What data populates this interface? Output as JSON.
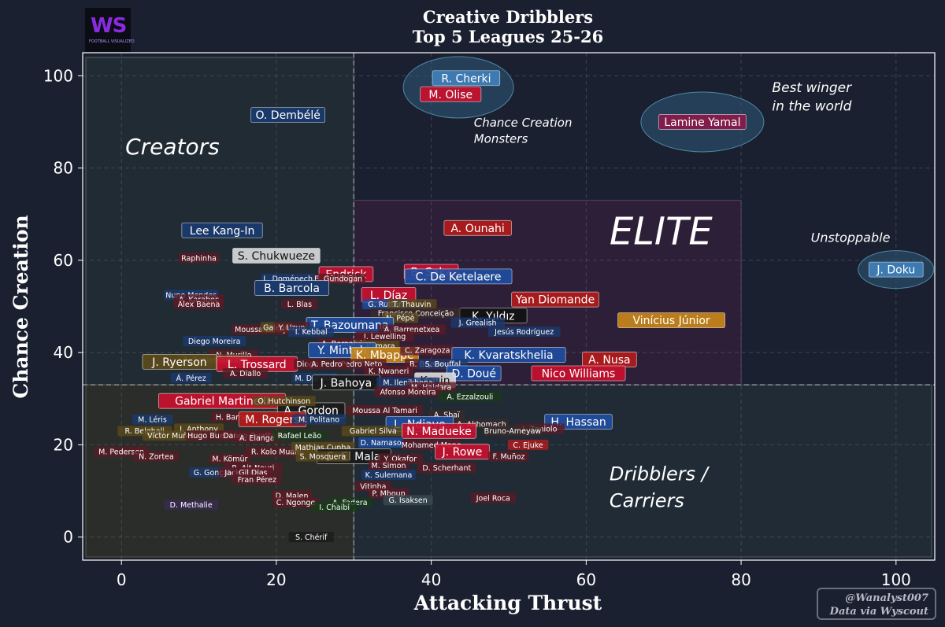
{
  "chart_data": {
    "type": "scatter",
    "title": "Creative Dribblers",
    "subtitle": "Top 5 Leagues 25-26",
    "xlabel": "Attacking Thrust",
    "ylabel": "Chance Creation",
    "xlim": [
      -5,
      105
    ],
    "ylim": [
      -5,
      105
    ],
    "xticks": [
      0,
      20,
      40,
      60,
      80,
      100
    ],
    "yticks": [
      0,
      20,
      40,
      60,
      80,
      100
    ],
    "grid": true,
    "divider_x": 30,
    "divider_y": 33,
    "zones": [
      {
        "label": "Creators"
      },
      {
        "label": "ELITE"
      },
      {
        "label": "Dribblers / Carriers"
      }
    ],
    "annotations": [
      {
        "text": "Chance Creation Monsters"
      },
      {
        "text": "Best winger in the world"
      },
      {
        "text": "Unstoppable"
      }
    ],
    "points": [
      {
        "name": "R. Cherki",
        "x": 44.5,
        "y": 99.5,
        "color": "#3f7fb8",
        "size": "l"
      },
      {
        "name": "M. Olise",
        "x": 42.5,
        "y": 96,
        "color": "#c8102e",
        "size": "l"
      },
      {
        "name": "Lamine Yamal",
        "x": 75,
        "y": 90,
        "color": "#8b1a4a",
        "size": "l"
      },
      {
        "name": "O. Dembélé",
        "x": 21.5,
        "y": 91.5,
        "color": "#1a3a6e",
        "size": "l"
      },
      {
        "name": "Lee Kang-In",
        "x": 13,
        "y": 66.5,
        "color": "#1a3a6e",
        "size": "l"
      },
      {
        "name": "A. Ounahi",
        "x": 46,
        "y": 67,
        "color": "#b31b1b",
        "size": "l"
      },
      {
        "name": "J. Doku",
        "x": 100,
        "y": 58,
        "color": "#3f7fb8",
        "size": "l"
      },
      {
        "name": "S. Chukwueze",
        "x": 20,
        "y": 61,
        "color": "#d8d8d8",
        "size": "l",
        "dark": true
      },
      {
        "name": "Raphinha",
        "x": 10,
        "y": 60.5,
        "color": "#5b1a24",
        "size": "s"
      },
      {
        "name": "Endrick",
        "x": 29,
        "y": 57,
        "color": "#c8102e",
        "size": "l"
      },
      {
        "name": "E. Gündoğan",
        "x": 28,
        "y": 56,
        "color": "#5b1a24",
        "size": "s"
      },
      {
        "name": "B. Saka",
        "x": 40,
        "y": 57.5,
        "color": "#c8102e",
        "size": "l"
      },
      {
        "name": "C. De Ketelaere",
        "x": 43.5,
        "y": 56.5,
        "color": "#1e4da0",
        "size": "l"
      },
      {
        "name": "L. Doménech",
        "x": 21.5,
        "y": 56,
        "color": "#1a3a6e",
        "size": "s"
      },
      {
        "name": "B. Barcola",
        "x": 22,
        "y": 54,
        "color": "#1a3a6e",
        "size": "l"
      },
      {
        "name": "L. Díaz",
        "x": 34.5,
        "y": 52.5,
        "color": "#c8102e",
        "size": "l"
      },
      {
        "name": "Yan Diomande",
        "x": 56,
        "y": 51.5,
        "color": "#b31b1b",
        "size": "l"
      },
      {
        "name": "Nuno Mendes",
        "x": 9,
        "y": 52.5,
        "color": "#1a3a6e",
        "size": "s"
      },
      {
        "name": "A. Karabec",
        "x": 10,
        "y": 51.5,
        "color": "#5b1a24",
        "size": "s"
      },
      {
        "name": "Alex Baena",
        "x": 10,
        "y": 50.5,
        "color": "#5b1a24",
        "size": "s"
      },
      {
        "name": "L. Blas",
        "x": 23,
        "y": 50.5,
        "color": "#5b1a24",
        "size": "s"
      },
      {
        "name": "G. Rutter",
        "x": 34,
        "y": 50.5,
        "color": "#1e4da0",
        "size": "s"
      },
      {
        "name": "T. Thauvin",
        "x": 37.5,
        "y": 50.5,
        "color": "#5b4a1a",
        "size": "s"
      },
      {
        "name": "K. Yıldız",
        "x": 48,
        "y": 48,
        "color": "#111111",
        "size": "l"
      },
      {
        "name": "Vinícius Júnior",
        "x": 71,
        "y": 47,
        "color": "#c8861a",
        "size": "l"
      },
      {
        "name": "Francisco Conceição",
        "x": 38,
        "y": 48.5,
        "color": "#3a2a2a",
        "size": "s"
      },
      {
        "name": "N. Pépé",
        "x": 36,
        "y": 47.5,
        "color": "#5b4a1a",
        "size": "s"
      },
      {
        "name": "J. Grealish",
        "x": 46,
        "y": 46.5,
        "color": "#1a3a6e",
        "size": "s"
      },
      {
        "name": "T. Bazoumana",
        "x": 29.5,
        "y": 46,
        "color": "#1e4da0",
        "size": "l"
      },
      {
        "name": "Jesús Rodríguez",
        "x": 52,
        "y": 44.5,
        "color": "#1a3a6e",
        "size": "s"
      },
      {
        "name": "A. Barrenetxea",
        "x": 37.5,
        "y": 45,
        "color": "#5b1a24",
        "size": "s"
      },
      {
        "name": "Moussa Diaby",
        "x": 18,
        "y": 45,
        "color": "#5b1a24",
        "size": "s"
      },
      {
        "name": "Galeno",
        "x": 20,
        "y": 45.5,
        "color": "#5b4a1a",
        "size": "s"
      },
      {
        "name": "Y. Uzun",
        "x": 22,
        "y": 45.5,
        "color": "#5b1a24",
        "size": "s"
      },
      {
        "name": "I. Kebbal",
        "x": 24.5,
        "y": 44.5,
        "color": "#1a3a6e",
        "size": "s"
      },
      {
        "name": "J. Lewelling",
        "x": 34,
        "y": 43.5,
        "color": "#5b1a24",
        "size": "s"
      },
      {
        "name": "Diego Moreira",
        "x": 12,
        "y": 42.5,
        "color": "#1a3a6e",
        "size": "s"
      },
      {
        "name": "A. Bernabé",
        "x": 28.5,
        "y": 42,
        "color": "#5b1a24",
        "size": "s"
      },
      {
        "name": "J. Kamara",
        "x": 33,
        "y": 41.5,
        "color": "#5b4a1a",
        "size": "s"
      },
      {
        "name": "Y. Minteh",
        "x": 28.5,
        "y": 40.5,
        "color": "#1e4da0",
        "size": "l"
      },
      {
        "name": "K. Mbappé",
        "x": 34,
        "y": 39.5,
        "color": "#c8861a",
        "size": "l"
      },
      {
        "name": "C. Zaragoza",
        "x": 39.5,
        "y": 40.5,
        "color": "#5b1a24",
        "size": "s"
      },
      {
        "name": "K. Kvaratskhelia",
        "x": 50,
        "y": 39.5,
        "color": "#1e4da0",
        "size": "l"
      },
      {
        "name": "A. Nusa",
        "x": 63,
        "y": 38.5,
        "color": "#b31b1b",
        "size": "l"
      },
      {
        "name": "N. Murillo",
        "x": 14.5,
        "y": 39.5,
        "color": "#5b1a24",
        "size": "s"
      },
      {
        "name": "A. Saelemaekers",
        "x": 12,
        "y": 38.5,
        "color": "#5b4a1a",
        "size": "s"
      },
      {
        "name": "J. Ryerson",
        "x": 7.5,
        "y": 38,
        "color": "#5b4a1a",
        "size": "l"
      },
      {
        "name": "Pedro Neto",
        "x": 31,
        "y": 37.5,
        "color": "#5b1a24",
        "size": "s"
      },
      {
        "name": "L. Trossard",
        "x": 17.5,
        "y": 37.5,
        "color": "#c8102e",
        "size": "l"
      },
      {
        "name": "Diogo",
        "x": 24,
        "y": 37.5,
        "color": "#5b1a24",
        "size": "s"
      },
      {
        "name": "B. Bryson",
        "x": 39.5,
        "y": 37.5,
        "color": "#5b1a24",
        "size": "s"
      },
      {
        "name": "S. Bouffal",
        "x": 41.5,
        "y": 37.5,
        "color": "#1a3a6e",
        "size": "s"
      },
      {
        "name": "A. Pedro",
        "x": 26.5,
        "y": 37.5,
        "color": "#5b1a24",
        "size": "s"
      },
      {
        "name": "Nico Williams",
        "x": 59,
        "y": 35.5,
        "color": "#c8102e",
        "size": "l"
      },
      {
        "name": "D. Doué",
        "x": 45.5,
        "y": 35.5,
        "color": "#1e4da0",
        "size": "l"
      },
      {
        "name": "K. Nwaneri",
        "x": 34.5,
        "y": 36,
        "color": "#5b1a24",
        "size": "s"
      },
      {
        "name": "Á. Pérez",
        "x": 9,
        "y": 34.5,
        "color": "#1a3a6e",
        "size": "s"
      },
      {
        "name": "M. Dahoud",
        "x": 25,
        "y": 34.5,
        "color": "#1a3a6e",
        "size": "s"
      },
      {
        "name": "A. Diallo",
        "x": 16,
        "y": 35.5,
        "color": "#5b1a24",
        "size": "s"
      },
      {
        "name": "Kevin",
        "x": 40.5,
        "y": 34,
        "color": "#d8d8d8",
        "size": "l",
        "dark": true
      },
      {
        "name": "J. Bahoya",
        "x": 29,
        "y": 33.5,
        "color": "#1a1a1a",
        "size": "l"
      },
      {
        "name": "M. Ilenikhena",
        "x": 37,
        "y": 33.5,
        "color": "#1a3a6e",
        "size": "s"
      },
      {
        "name": "M. Haidara",
        "x": 40,
        "y": 32.5,
        "color": "#5b1a24",
        "size": "s"
      },
      {
        "name": "Afonso Moreira",
        "x": 37,
        "y": 31.5,
        "color": "#5b1a24",
        "size": "s"
      },
      {
        "name": "A. Ezzalzouli",
        "x": 45,
        "y": 30.5,
        "color": "#1a3a1a",
        "size": "s"
      },
      {
        "name": "Gabriel Martinelli",
        "x": 13,
        "y": 29.5,
        "color": "#c8102e",
        "size": "l"
      },
      {
        "name": "A. Gordon",
        "x": 24.5,
        "y": 27.5,
        "color": "#1a1a1a",
        "size": "l"
      },
      {
        "name": "O. Hutchinson",
        "x": 21,
        "y": 29.5,
        "color": "#5b4a1a",
        "size": "s"
      },
      {
        "name": "Moussa Al Tamari",
        "x": 34,
        "y": 27.5,
        "color": "#5b1a24",
        "size": "s"
      },
      {
        "name": "A. Sbaï",
        "x": 42,
        "y": 26.5,
        "color": "#3a2a2a",
        "size": "s"
      },
      {
        "name": "H. Hassan",
        "x": 59,
        "y": 25,
        "color": "#1e4da0",
        "size": "l"
      },
      {
        "name": "M. Léris",
        "x": 4,
        "y": 25.5,
        "color": "#1a3a6e",
        "size": "s"
      },
      {
        "name": "H. Barnes",
        "x": 14.5,
        "y": 26,
        "color": "#5b1a24",
        "size": "s"
      },
      {
        "name": "M. Rogers",
        "x": 19.5,
        "y": 25.5,
        "color": "#b31b1b",
        "size": "l"
      },
      {
        "name": "M. Politano",
        "x": 25.5,
        "y": 25.5,
        "color": "#1a3a6e",
        "size": "s"
      },
      {
        "name": "A. Akhomach",
        "x": 46.5,
        "y": 24.5,
        "color": "#3a2a2a",
        "size": "s"
      },
      {
        "name": "L. Ndiaye",
        "x": 38.5,
        "y": 24.5,
        "color": "#1e4da0",
        "size": "l"
      },
      {
        "name": "I. Zaniolo",
        "x": 54,
        "y": 23.5,
        "color": "#5b1a24",
        "size": "s"
      },
      {
        "name": "J. Anthony",
        "x": 10,
        "y": 23.5,
        "color": "#5b4a1a",
        "size": "s"
      },
      {
        "name": "R. Belghali",
        "x": 3,
        "y": 23,
        "color": "#5b4a1a",
        "size": "s"
      },
      {
        "name": "Gabriel Silva",
        "x": 32.5,
        "y": 23,
        "color": "#5b4a1a",
        "size": "s"
      },
      {
        "name": "N. Madueke",
        "x": 41,
        "y": 23,
        "color": "#c8102e",
        "size": "l"
      },
      {
        "name": "Bruno-Ameyaw",
        "x": 50.5,
        "y": 23,
        "color": "#3a2a2a",
        "size": "s"
      },
      {
        "name": "Víctor Muñoz",
        "x": 6.5,
        "y": 22,
        "color": "#5b4a1a",
        "size": "s"
      },
      {
        "name": "Hugo Bueno",
        "x": 11.5,
        "y": 22,
        "color": "#5b1a24",
        "size": "s"
      },
      {
        "name": "Dango Ouattara",
        "x": 17,
        "y": 22,
        "color": "#5b1a24",
        "size": "s"
      },
      {
        "name": "A. Elanga",
        "x": 17.5,
        "y": 21.5,
        "color": "#5b1a24",
        "size": "s"
      },
      {
        "name": "Rafael Leão",
        "x": 23,
        "y": 22,
        "color": "#1a3a1a",
        "size": "s"
      },
      {
        "name": "D. Namaso",
        "x": 33.5,
        "y": 20.5,
        "color": "#1e4da0",
        "size": "s"
      },
      {
        "name": "Mohamed Mane",
        "x": 40,
        "y": 20,
        "color": "#5b1a24",
        "size": "s"
      },
      {
        "name": "C. Ejuke",
        "x": 52.5,
        "y": 20,
        "color": "#b31b1b",
        "size": "s"
      },
      {
        "name": "M. Pedersen",
        "x": 0,
        "y": 18.5,
        "color": "#5b1a24",
        "size": "s"
      },
      {
        "name": "R. Kolo Muani",
        "x": 20,
        "y": 18.5,
        "color": "#5b1a24",
        "size": "s"
      },
      {
        "name": "N. Zortea",
        "x": 4.5,
        "y": 17.5,
        "color": "#5b1a24",
        "size": "s"
      },
      {
        "name": "Mathias Cunha",
        "x": 26,
        "y": 19.5,
        "color": "#5b4a1a",
        "size": "s"
      },
      {
        "name": "S. El Mala",
        "x": 30,
        "y": 17.5,
        "color": "#1a1a1a",
        "size": "l"
      },
      {
        "name": "Y. Okafor",
        "x": 36,
        "y": 17,
        "color": "#5b1a24",
        "size": "s"
      },
      {
        "name": "J. Rowe",
        "x": 44,
        "y": 18.5,
        "color": "#c8102e",
        "size": "l"
      },
      {
        "name": "F. Muñoz",
        "x": 50,
        "y": 17.5,
        "color": "#5b1a24",
        "size": "s"
      },
      {
        "name": "M. Kömür",
        "x": 14,
        "y": 17,
        "color": "#5b1a24",
        "size": "s"
      },
      {
        "name": "S. Mosquera",
        "x": 26,
        "y": 17.5,
        "color": "#5b4a1a",
        "size": "s"
      },
      {
        "name": "M. Simon",
        "x": 34.5,
        "y": 15.5,
        "color": "#5b1a24",
        "size": "s"
      },
      {
        "name": "D. Scherhant",
        "x": 42,
        "y": 15,
        "color": "#5b1a24",
        "size": "s"
      },
      {
        "name": "R. Ait-Nouri",
        "x": 17,
        "y": 15,
        "color": "#5b1a24",
        "size": "s"
      },
      {
        "name": "G. Gonçalves",
        "x": 12.5,
        "y": 14,
        "color": "#1a3a6e",
        "size": "s"
      },
      {
        "name": "Jack Clarke",
        "x": 16,
        "y": 14,
        "color": "#5b1a24",
        "size": "s"
      },
      {
        "name": "Gil Dias",
        "x": 17,
        "y": 14,
        "color": "#5b1a24",
        "size": "s"
      },
      {
        "name": "Fran Pérez",
        "x": 17.5,
        "y": 12.5,
        "color": "#5b1a24",
        "size": "s"
      },
      {
        "name": "K. Sulemana",
        "x": 34.5,
        "y": 13.5,
        "color": "#1a3a6e",
        "size": "s"
      },
      {
        "name": "Vitinha",
        "x": 32.5,
        "y": 11,
        "color": "#5b1a24",
        "size": "s"
      },
      {
        "name": "P. Mboup",
        "x": 34.5,
        "y": 9.5,
        "color": "#5b1a24",
        "size": "s"
      },
      {
        "name": "D. Malen",
        "x": 22,
        "y": 9,
        "color": "#5b1a24",
        "size": "s"
      },
      {
        "name": "Joel Roca",
        "x": 48,
        "y": 8.5,
        "color": "#5b1a24",
        "size": "s"
      },
      {
        "name": "G. Isaksen",
        "x": 37,
        "y": 8,
        "color": "#3a4a52",
        "size": "s"
      },
      {
        "name": "A. Fadera",
        "x": 29.5,
        "y": 7.5,
        "color": "#1a3a1a",
        "size": "s"
      },
      {
        "name": "C. Ngonge",
        "x": 22.5,
        "y": 7.5,
        "color": "#5b1a24",
        "size": "s"
      },
      {
        "name": "I. Chaibi",
        "x": 27.5,
        "y": 6.5,
        "color": "#1a3a1a",
        "size": "s"
      },
      {
        "name": "D. Methalie",
        "x": 9,
        "y": 7,
        "color": "#3a2a52",
        "size": "s"
      },
      {
        "name": "S. Chérif",
        "x": 24.5,
        "y": 0,
        "color": "#1a1a1a",
        "size": "s"
      }
    ],
    "highlights": [
      {
        "label": "Chance Creation Monsters"
      },
      {
        "label": "Best winger in the world"
      },
      {
        "label": "Unstoppable"
      }
    ]
  },
  "logo": {
    "text": "WS",
    "subtext": "FOOTBALL VISUALIZED"
  },
  "credit": {
    "line1": "@Wanalyst007",
    "line2": "Data via Wyscout"
  }
}
